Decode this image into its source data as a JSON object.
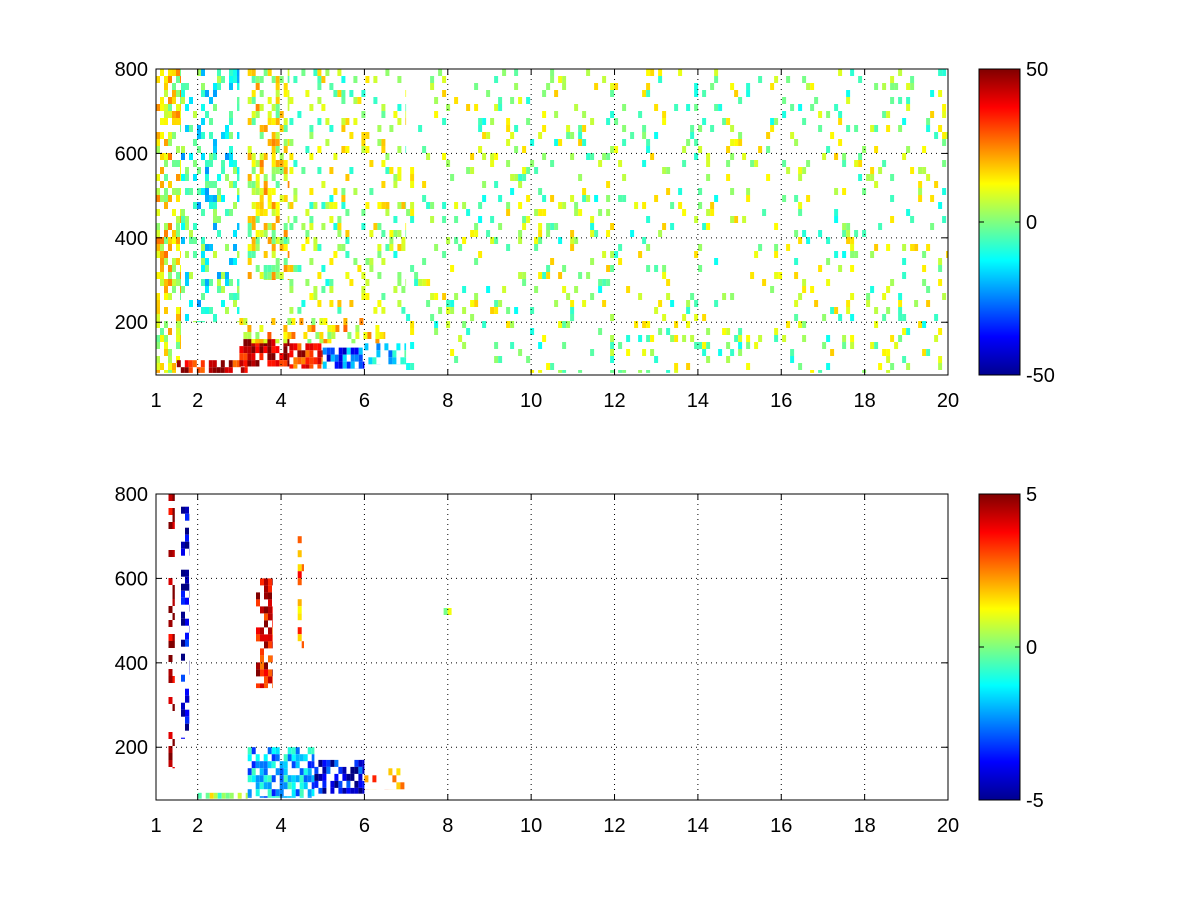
{
  "chart_data": [
    {
      "type": "heatmap",
      "title": "",
      "xlabel": "",
      "ylabel": "",
      "xlim": [
        1,
        20
      ],
      "ylim": [
        75,
        800
      ],
      "xticks": [
        "1",
        "2",
        "4",
        "6",
        "8",
        "10",
        "12",
        "14",
        "16",
        "18",
        "20"
      ],
      "yticks": [
        "200",
        "400",
        "600",
        "800"
      ],
      "grid": true,
      "colormap": "jet",
      "colorbar": {
        "min": -50,
        "max": 50,
        "ticks": [
          "50",
          "0",
          "-50"
        ]
      },
      "regions": [
        {
          "x": [
            1.0,
            1.6
          ],
          "y": [
            80,
            800
          ],
          "value": 12,
          "density": 0.55
        },
        {
          "x": [
            1.6,
            3.0
          ],
          "y": [
            200,
            800
          ],
          "value": -8,
          "density": 0.3
        },
        {
          "x": [
            3.2,
            4.2
          ],
          "y": [
            300,
            800
          ],
          "value": 10,
          "density": 0.45
        },
        {
          "x": [
            4.2,
            7.0
          ],
          "y": [
            220,
            800
          ],
          "value": 4,
          "density": 0.2
        },
        {
          "x": [
            7.0,
            20.0
          ],
          "y": [
            80,
            800
          ],
          "value": 3,
          "density": 0.12
        },
        {
          "x": [
            1.5,
            3.2
          ],
          "y": [
            80,
            110
          ],
          "value": 40,
          "density": 0.7
        },
        {
          "x": [
            3.0,
            4.2
          ],
          "y": [
            95,
            160
          ],
          "value": 45,
          "density": 0.8
        },
        {
          "x": [
            4.2,
            5.0
          ],
          "y": [
            90,
            150
          ],
          "value": 35,
          "density": 0.7
        },
        {
          "x": [
            5.0,
            6.0
          ],
          "y": [
            90,
            140
          ],
          "value": -30,
          "density": 0.6
        },
        {
          "x": [
            6.0,
            7.0
          ],
          "y": [
            100,
            150
          ],
          "value": -15,
          "density": 0.4
        },
        {
          "x": [
            3.0,
            6.5
          ],
          "y": [
            150,
            210
          ],
          "value": 15,
          "density": 0.35
        }
      ]
    },
    {
      "type": "heatmap",
      "title": "",
      "xlabel": "",
      "ylabel": "",
      "xlim": [
        1,
        20
      ],
      "ylim": [
        75,
        800
      ],
      "xticks": [
        "1",
        "2",
        "4",
        "6",
        "8",
        "10",
        "12",
        "14",
        "16",
        "18",
        "20"
      ],
      "yticks": [
        "200",
        "400",
        "600",
        "800"
      ],
      "grid": true,
      "colormap": "jet",
      "colorbar": {
        "min": -5,
        "max": 5,
        "ticks": [
          "5",
          "0",
          "-5"
        ]
      },
      "regions": [
        {
          "x": [
            1.3,
            1.45
          ],
          "y": [
            150,
            800
          ],
          "value": 5,
          "density": 0.5
        },
        {
          "x": [
            1.6,
            1.8
          ],
          "y": [
            220,
            770
          ],
          "value": -4.5,
          "density": 0.4
        },
        {
          "x": [
            3.4,
            3.8
          ],
          "y": [
            340,
            600
          ],
          "value": 4,
          "density": 0.6
        },
        {
          "x": [
            4.4,
            4.55
          ],
          "y": [
            400,
            700
          ],
          "value": 2.5,
          "density": 0.3
        },
        {
          "x": [
            2.0,
            3.2
          ],
          "y": [
            78,
            92
          ],
          "value": 0.3,
          "density": 0.85
        },
        {
          "x": [
            3.2,
            4.8
          ],
          "y": [
            80,
            200
          ],
          "value": -2,
          "density": 0.7
        },
        {
          "x": [
            4.8,
            6.0
          ],
          "y": [
            90,
            170
          ],
          "value": -4,
          "density": 0.7
        },
        {
          "x": [
            6.0,
            7.0
          ],
          "y": [
            100,
            150
          ],
          "value": 2,
          "density": 0.3
        },
        {
          "x": [
            7.9,
            8.1
          ],
          "y": [
            500,
            530
          ],
          "value": 1,
          "density": 0.6
        }
      ]
    }
  ]
}
